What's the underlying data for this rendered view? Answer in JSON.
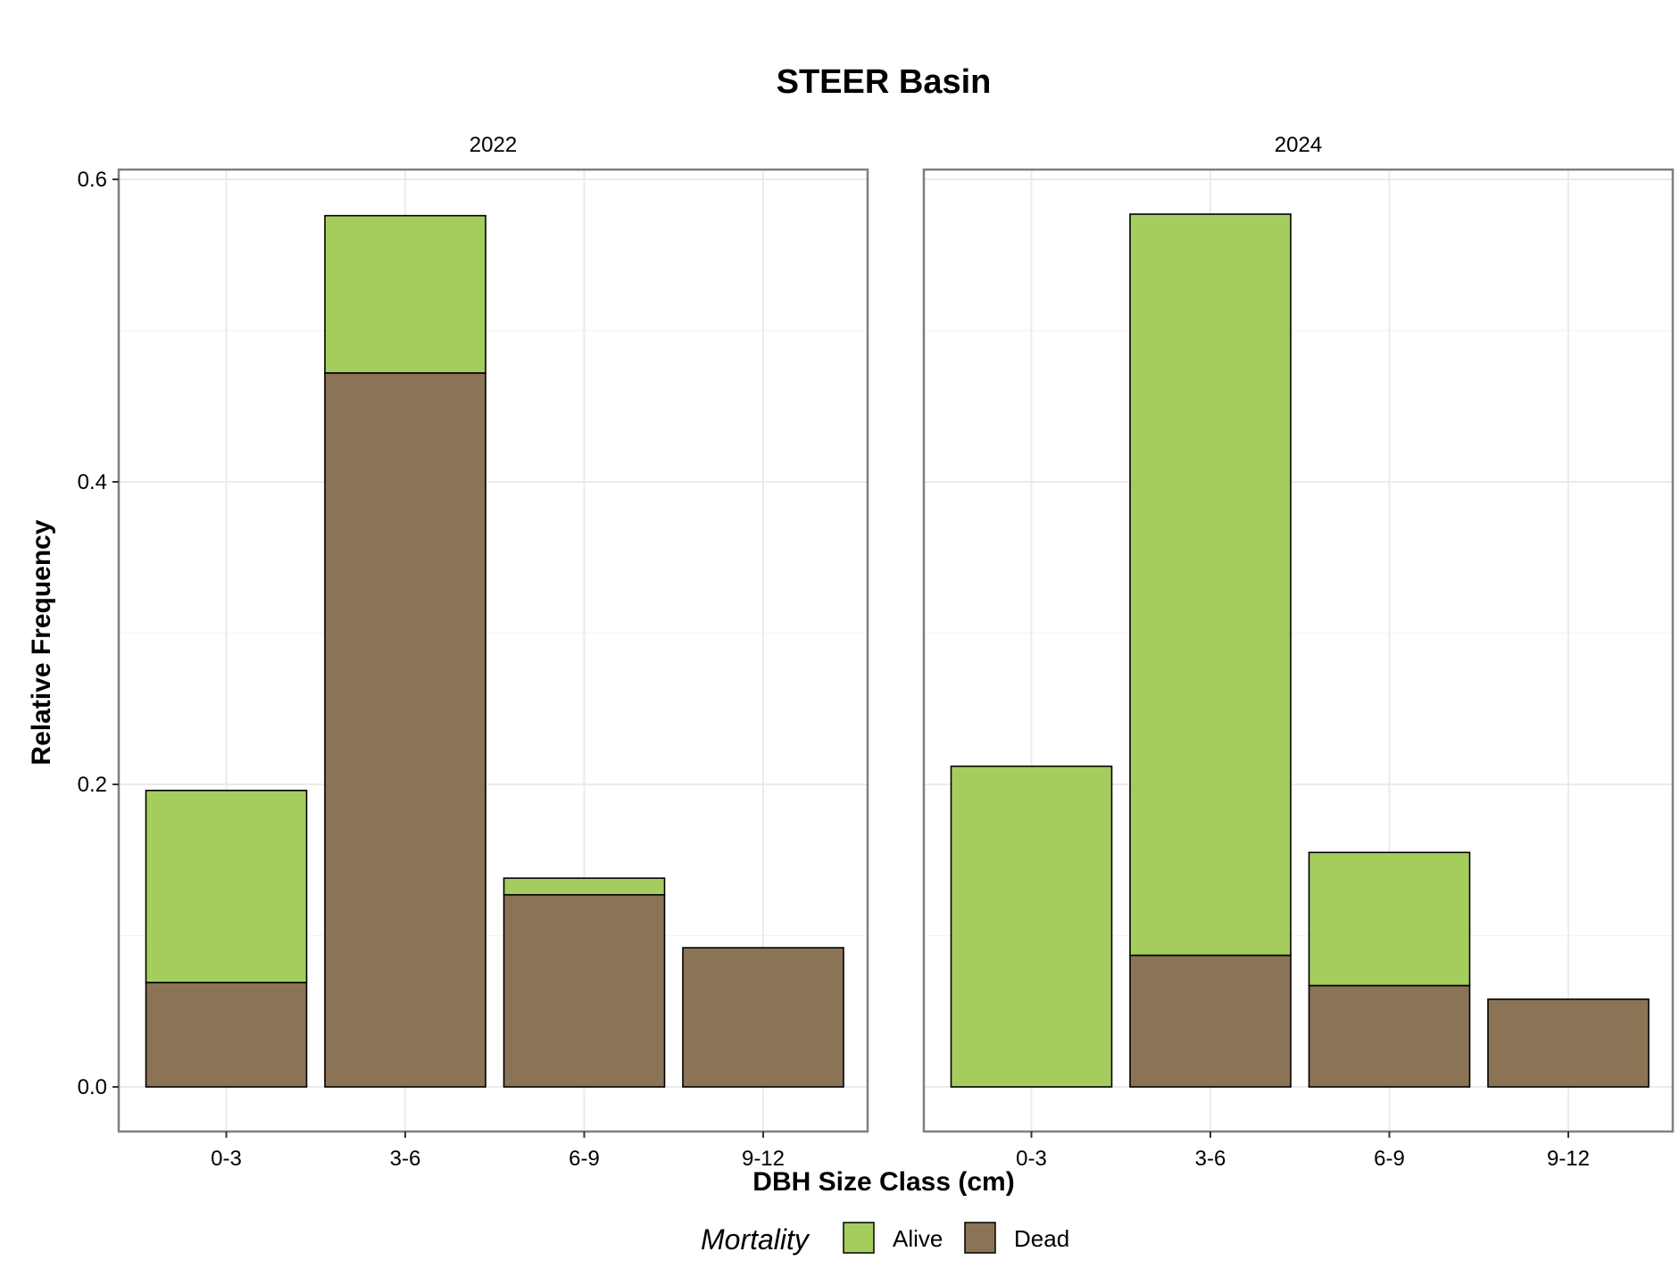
{
  "chart_data": {
    "type": "bar",
    "stacked": true,
    "title": "STEER Basin",
    "xlabel": "DBH Size Class (cm)",
    "ylabel": "Relative Frequency",
    "ylim": [
      0,
      0.6
    ],
    "yticks": [
      "0.0",
      "0.2",
      "0.4",
      "0.6"
    ],
    "categories": [
      "0-3",
      "3-6",
      "6-9",
      "9-12"
    ],
    "grid": true,
    "legend": {
      "title": "Mortality",
      "position": "bottom",
      "entries": [
        {
          "name": "Alive",
          "color": "#a5cd5e"
        },
        {
          "name": "Dead",
          "color": "#8b7355"
        }
      ]
    },
    "panels": [
      {
        "label": "2022",
        "series": [
          {
            "name": "Dead",
            "values": [
              0.069,
              0.472,
              0.127,
              0.092
            ]
          },
          {
            "name": "Alive",
            "values": [
              0.127,
              0.104,
              0.011,
              0.0
            ]
          }
        ]
      },
      {
        "label": "2024",
        "series": [
          {
            "name": "Dead",
            "values": [
              0.0,
              0.087,
              0.067,
              0.058
            ]
          },
          {
            "name": "Alive",
            "values": [
              0.212,
              0.49,
              0.088,
              0.0
            ]
          }
        ]
      }
    ]
  },
  "colors": {
    "alive": "#a5cd5e",
    "dead": "#8b7355",
    "panel_border": "#7f7f7f",
    "grid": "#ebebeb"
  }
}
